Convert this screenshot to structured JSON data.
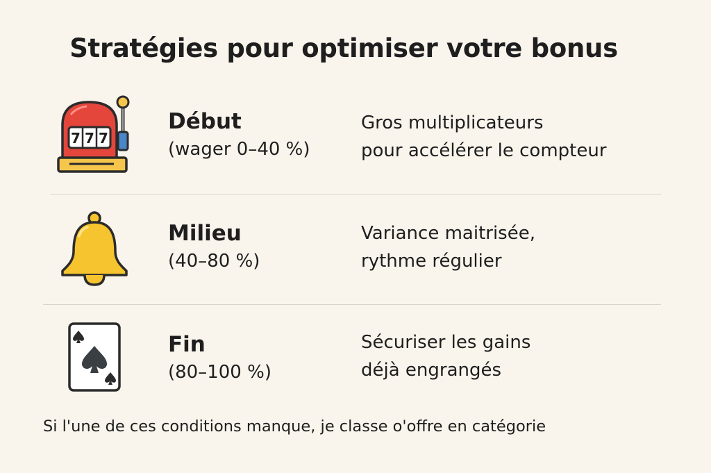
{
  "title": "Stratégies pour optimiser votre bonus",
  "rows": [
    {
      "icon": "slot-machine-icon",
      "phase": "Début",
      "range": "(wager 0–40 %)",
      "desc_lines": [
        "Gros multiplicateurs",
        "pour accélérer le compteur"
      ],
      "reel_text": [
        "7",
        "7",
        "7"
      ]
    },
    {
      "icon": "bell-icon",
      "phase": "Milieu",
      "range": "(40–80 %)",
      "desc_lines": [
        "Variance maitrisée,",
        "rythme régulier"
      ]
    },
    {
      "icon": "spade-card-icon",
      "phase": "Fin",
      "range": "(80–100 %)",
      "desc_lines": [
        "Sécuriser les gains",
        "déjà engrangés"
      ]
    }
  ],
  "footer": "Si l'une de ces conditions manque, je classe o'offre en catégorie",
  "colors": {
    "background": "#f9f4ec",
    "text": "#1e1e1e",
    "slot_red": "#e4463c",
    "slot_gold": "#f5c64b",
    "bell_yellow": "#f6c42f",
    "card_white": "#ffffff",
    "outline": "#2b2b2b",
    "divider": "#d9d2c7"
  }
}
